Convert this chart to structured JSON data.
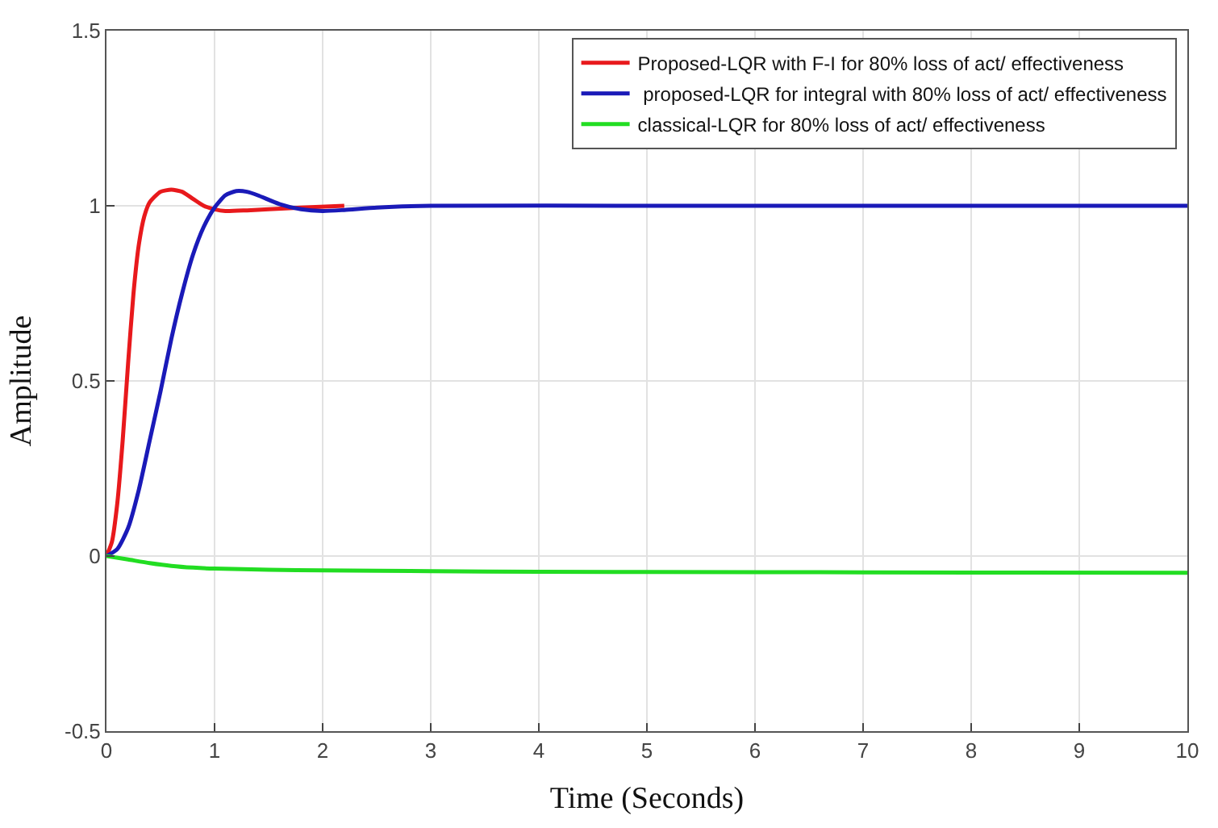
{
  "chart_data": {
    "type": "line",
    "xlabel": "Time (Seconds)",
    "ylabel": "Amplitude",
    "xlim": [
      0,
      10
    ],
    "ylim": [
      -0.5,
      1.5
    ],
    "xticks": [
      0,
      1,
      2,
      3,
      4,
      5,
      6,
      7,
      8,
      9,
      10
    ],
    "yticks": [
      -0.5,
      0,
      0.5,
      1,
      1.5
    ],
    "grid": true,
    "legend": "top right",
    "marker": "none",
    "line_style": "solid",
    "series": [
      {
        "name": "Proposed-LQR with F-I for 80% loss of act/ effectiveness",
        "color": "#e8191c",
        "x": [
          0,
          0.05,
          0.1,
          0.15,
          0.2,
          0.25,
          0.3,
          0.35,
          0.4,
          0.5,
          0.6,
          0.7,
          0.8,
          0.9,
          1.0,
          1.1,
          1.3,
          1.5,
          1.8,
          2.2
        ],
        "values": [
          0,
          0.04,
          0.15,
          0.33,
          0.55,
          0.75,
          0.89,
          0.97,
          1.01,
          1.04,
          1.046,
          1.04,
          1.02,
          1.0,
          0.99,
          0.985,
          0.987,
          0.99,
          0.995,
          1.0
        ]
      },
      {
        "name": " proposed-LQR for integral with 80% loss of act/ effectiveness",
        "color": "#1a1ab8",
        "x": [
          0,
          0.1,
          0.2,
          0.3,
          0.4,
          0.5,
          0.6,
          0.7,
          0.8,
          0.9,
          1.0,
          1.1,
          1.2,
          1.3,
          1.4,
          1.6,
          1.8,
          2.0,
          2.2,
          2.5,
          3,
          5,
          10
        ],
        "values": [
          0,
          0.02,
          0.08,
          0.19,
          0.33,
          0.47,
          0.62,
          0.75,
          0.86,
          0.94,
          0.995,
          1.03,
          1.042,
          1.04,
          1.03,
          1.005,
          0.99,
          0.985,
          0.988,
          0.995,
          1.0,
          1.0,
          1.0
        ]
      },
      {
        "name": "classical-LQR for 80% loss of act/ effectiveness",
        "color": "#22dd22",
        "x": [
          0,
          0.2,
          0.4,
          0.6,
          0.8,
          1.0,
          1.5,
          2,
          3,
          4,
          6,
          8,
          10
        ],
        "values": [
          0,
          -0.01,
          -0.02,
          -0.028,
          -0.033,
          -0.036,
          -0.039,
          -0.041,
          -0.043,
          -0.045,
          -0.046,
          -0.047,
          -0.048
        ]
      }
    ]
  }
}
